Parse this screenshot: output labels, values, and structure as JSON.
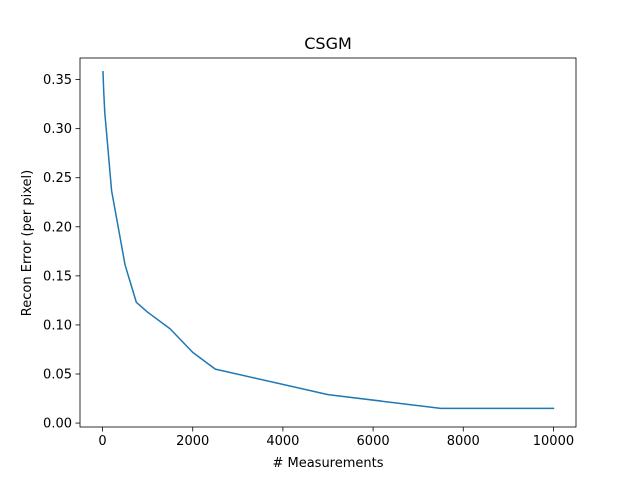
{
  "chart_data": {
    "type": "line",
    "title": "CSGM",
    "xlabel": "# Measurements",
    "ylabel": "Recon Error (per pixel)",
    "xlim": [
      -500,
      10500
    ],
    "ylim": [
      -0.004,
      0.372
    ],
    "x_ticks": [
      0,
      2000,
      4000,
      6000,
      8000,
      10000
    ],
    "x_tick_labels": [
      "0",
      "2000",
      "4000",
      "6000",
      "8000",
      "10000"
    ],
    "y_ticks": [
      0.0,
      0.05,
      0.1,
      0.15,
      0.2,
      0.25,
      0.3,
      0.35
    ],
    "y_tick_labels": [
      "0.00",
      "0.05",
      "0.10",
      "0.15",
      "0.20",
      "0.25",
      "0.30",
      "0.35"
    ],
    "grid": false,
    "series": [
      {
        "color": "#1f77b4",
        "x": [
          10,
          25,
          50,
          100,
          200,
          500,
          750,
          1000,
          1500,
          2000,
          2500,
          5000,
          7500,
          10000
        ],
        "y": [
          0.358,
          0.339,
          0.316,
          0.29,
          0.237,
          0.161,
          0.123,
          0.113,
          0.096,
          0.072,
          0.055,
          0.029,
          0.015,
          0.015
        ]
      }
    ]
  }
}
